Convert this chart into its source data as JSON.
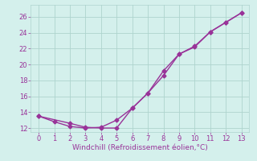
{
  "xlabel": "Windchill (Refroidissement éolien,°C)",
  "xlim": [
    -0.5,
    13.5
  ],
  "ylim": [
    11.5,
    27.5
  ],
  "xticks": [
    0,
    1,
    2,
    3,
    4,
    5,
    6,
    7,
    8,
    9,
    10,
    11,
    12,
    13
  ],
  "yticks": [
    12,
    14,
    16,
    18,
    20,
    22,
    24,
    26
  ],
  "bg_color": "#d4f0ec",
  "grid_color": "#aed4ce",
  "line_color": "#993399",
  "line1_x": [
    0,
    1,
    2,
    3,
    4,
    5,
    6,
    7,
    8,
    9,
    10,
    11,
    12,
    13
  ],
  "line1_y": [
    13.5,
    12.8,
    12.2,
    12.0,
    12.1,
    13.0,
    14.5,
    16.4,
    18.6,
    21.3,
    22.3,
    24.1,
    25.3,
    26.5
  ],
  "line2_x": [
    0,
    2,
    3,
    4,
    5,
    6,
    7,
    8,
    9,
    10,
    11,
    12,
    13
  ],
  "line2_y": [
    13.5,
    12.6,
    12.1,
    12.0,
    12.0,
    14.5,
    16.4,
    19.2,
    21.3,
    22.2,
    24.1,
    25.3,
    26.5
  ],
  "marker": "D",
  "markersize": 2.5,
  "linewidth": 1.0,
  "tick_fontsize": 6,
  "xlabel_fontsize": 6.5
}
